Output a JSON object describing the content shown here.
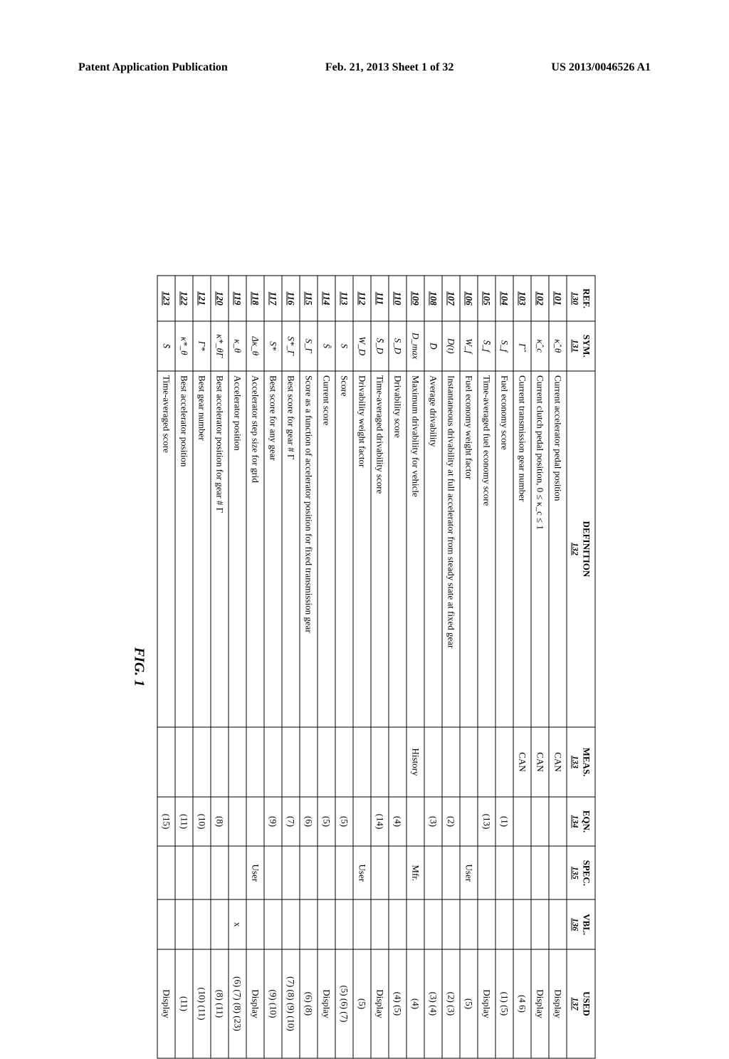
{
  "header": {
    "left": "Patent Application Publication",
    "center": "Feb. 21, 2013  Sheet 1 of 32",
    "right": "US 2013/0046526 A1"
  },
  "figureLabel": "FIG. 1",
  "table": {
    "columns": [
      {
        "title": "REF.",
        "idref": "130"
      },
      {
        "title": "SYM.",
        "idref": "131"
      },
      {
        "title": "DEFINITION",
        "idref": "132"
      },
      {
        "title": "MEAS.",
        "idref": "133"
      },
      {
        "title": "EQN.",
        "idref": "134"
      },
      {
        "title": "SPEC.",
        "idref": "135"
      },
      {
        "title": "VBL.",
        "idref": "136"
      },
      {
        "title": "USED",
        "idref": "137"
      }
    ],
    "rows": [
      {
        "ref": "101",
        "sym": "κ̂_θ",
        "def": "Current accelerator pedal position",
        "meas": "CAN",
        "eqn": "",
        "spec": "",
        "vbl": "",
        "used": "Display"
      },
      {
        "ref": "102",
        "sym": "κ̂_c",
        "def": "Current clutch pedal position, 0 ≤ κ_c ≤ 1",
        "meas": "CAN",
        "eqn": "",
        "spec": "",
        "vbl": "",
        "used": "Display"
      },
      {
        "ref": "103",
        "sym": "Γ̂",
        "def": "Current transmission gear number",
        "meas": "CAN",
        "eqn": "",
        "spec": "",
        "vbl": "",
        "used": "(4 6)"
      },
      {
        "ref": "104",
        "sym": "S_f",
        "def": "Fuel economy score",
        "meas": "",
        "eqn": "(1)",
        "spec": "",
        "vbl": "",
        "used": "(1) (5)"
      },
      {
        "ref": "105",
        "sym": "S̄_f",
        "def": "Time-averaged fuel economy score",
        "meas": "",
        "eqn": "(13)",
        "spec": "",
        "vbl": "",
        "used": "Display"
      },
      {
        "ref": "106",
        "sym": "W_f",
        "def": "Fuel economy weight factor",
        "meas": "",
        "eqn": "",
        "spec": "User",
        "vbl": "",
        "used": "(5)"
      },
      {
        "ref": "107",
        "sym": "D(t)",
        "def": "Instantaneous drivability at full accelerator from steady state at fixed gear",
        "meas": "",
        "eqn": "(2)",
        "spec": "",
        "vbl": "",
        "used": "(2) (3)"
      },
      {
        "ref": "108",
        "sym": "D̄",
        "def": "Average drivability",
        "meas": "",
        "eqn": "(3)",
        "spec": "",
        "vbl": "",
        "used": "(3) (4)"
      },
      {
        "ref": "109",
        "sym": "D_max",
        "def": "Maximum drivability for vehicle",
        "meas": "History",
        "eqn": "",
        "spec": "Mfr.",
        "vbl": "",
        "used": "(4)"
      },
      {
        "ref": "110",
        "sym": "S_D",
        "def": "Drivability score",
        "meas": "",
        "eqn": "(4)",
        "spec": "",
        "vbl": "",
        "used": "(4) (5)"
      },
      {
        "ref": "111",
        "sym": "S̄_D",
        "def": "Time-averaged drivability score",
        "meas": "",
        "eqn": "(14)",
        "spec": "",
        "vbl": "",
        "used": "Display"
      },
      {
        "ref": "112",
        "sym": "W_D",
        "def": "Drivability weight factor",
        "meas": "",
        "eqn": "",
        "spec": "User",
        "vbl": "",
        "used": "(5)"
      },
      {
        "ref": "113",
        "sym": "S",
        "def": "Score",
        "meas": "",
        "eqn": "(5)",
        "spec": "",
        "vbl": "",
        "used": "(5) (6) (7)"
      },
      {
        "ref": "114",
        "sym": "Ŝ",
        "def": "Current score",
        "meas": "",
        "eqn": "(5)",
        "spec": "",
        "vbl": "",
        "used": "Display"
      },
      {
        "ref": "115",
        "sym": "S_Γ",
        "def": "Score as a function of accelerator position for fixed transmission gear",
        "meas": "",
        "eqn": "(6)",
        "spec": "",
        "vbl": "",
        "used": "(6) (8)"
      },
      {
        "ref": "116",
        "sym": "S*_Γ",
        "def": "Best score for gear # Γ",
        "meas": "",
        "eqn": "(7)",
        "spec": "",
        "vbl": "",
        "used": "(7) (8) (9) (10)"
      },
      {
        "ref": "117",
        "sym": "S*",
        "def": "Best score for any gear",
        "meas": "",
        "eqn": "(9)",
        "spec": "",
        "vbl": "",
        "used": "(9) (10)"
      },
      {
        "ref": "118",
        "sym": "Δκ_θ",
        "def": "Accelerator step size for grid",
        "meas": "",
        "eqn": "",
        "spec": "User",
        "vbl": "",
        "used": "Display"
      },
      {
        "ref": "119",
        "sym": "κ_θ",
        "def": "Accelerator position",
        "meas": "",
        "eqn": "",
        "spec": "",
        "vbl": "x",
        "used": "(6) (7) (8) (23)"
      },
      {
        "ref": "120",
        "sym": "κ*_θΓ",
        "def": "Best accelerator position for gear # Γ",
        "meas": "",
        "eqn": "(8)",
        "spec": "",
        "vbl": "",
        "used": "(8) (11)"
      },
      {
        "ref": "121",
        "sym": "Γ*",
        "def": "Best gear number",
        "meas": "",
        "eqn": "(10)",
        "spec": "",
        "vbl": "",
        "used": "(10) (11)"
      },
      {
        "ref": "122",
        "sym": "κ*_θ",
        "def": "Best accelerator position",
        "meas": "",
        "eqn": "(11)",
        "spec": "",
        "vbl": "",
        "used": "(11)"
      },
      {
        "ref": "123",
        "sym": "S̄",
        "def": "Time-averaged score",
        "meas": "",
        "eqn": "(15)",
        "spec": "",
        "vbl": "",
        "used": "Display"
      }
    ]
  }
}
